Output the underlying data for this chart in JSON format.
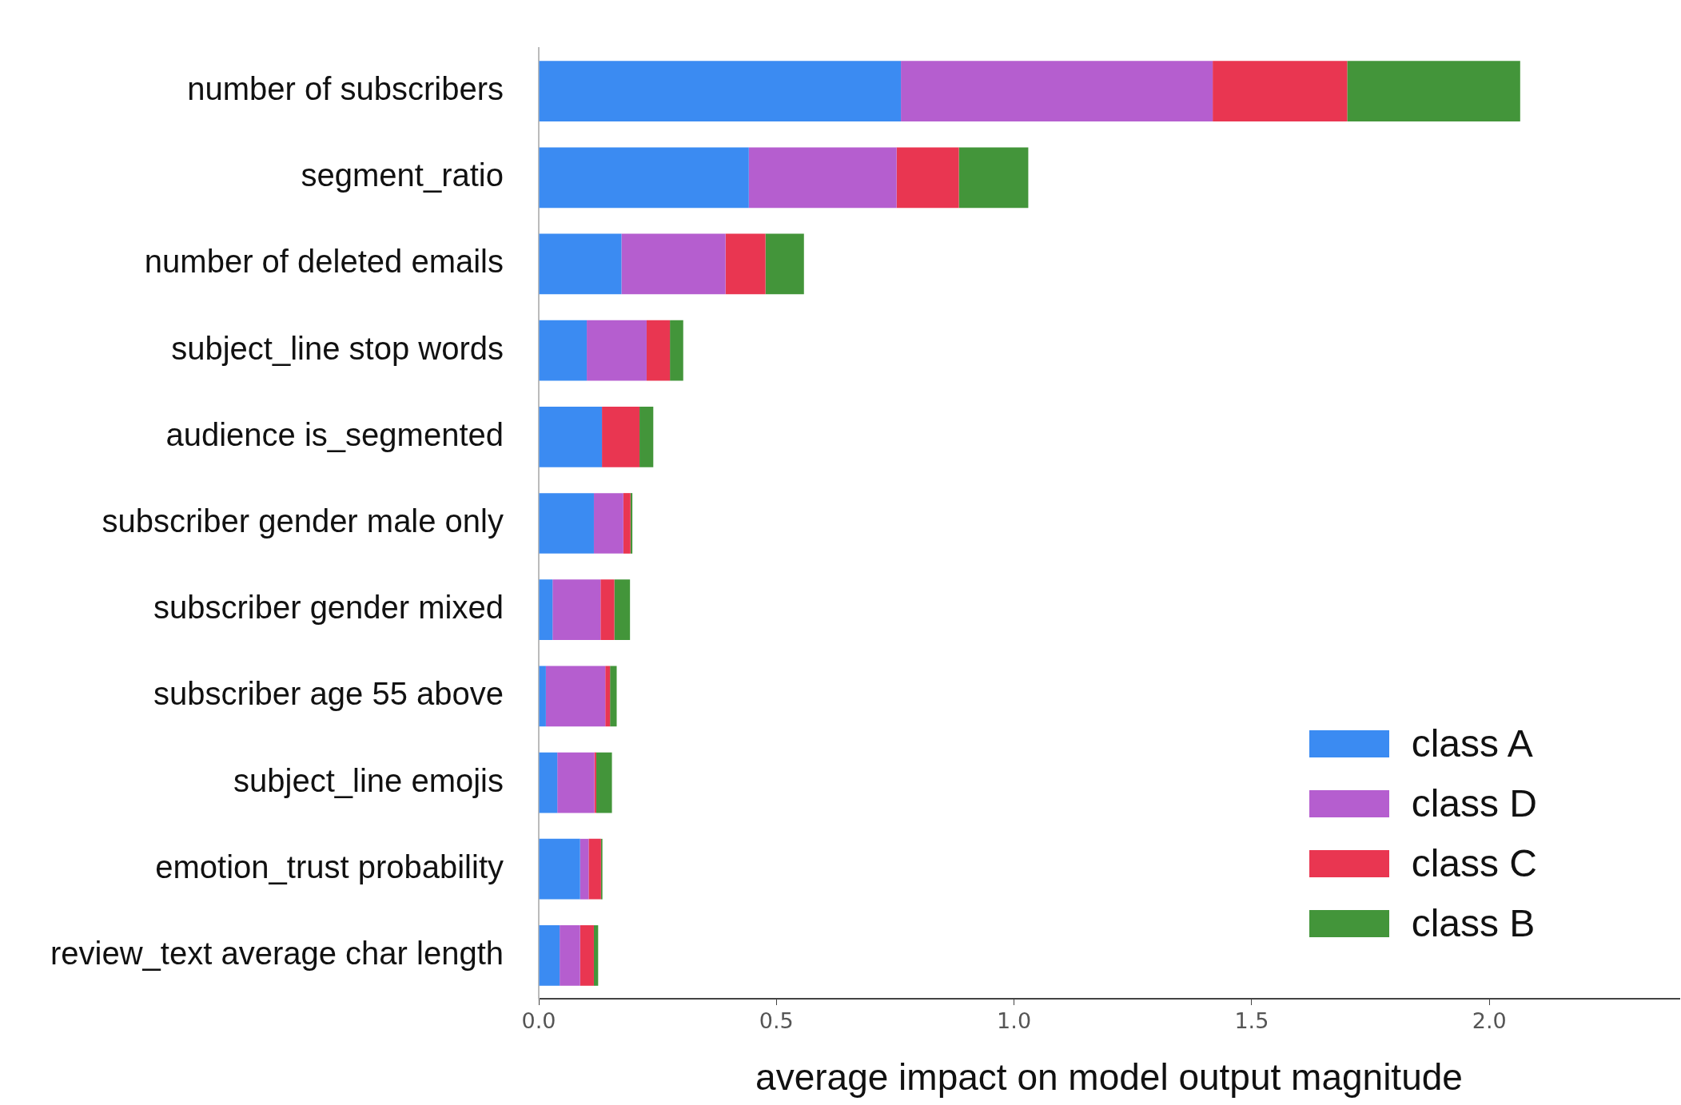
{
  "chart_data": {
    "type": "bar",
    "orientation": "horizontal",
    "stacked": true,
    "xlabel": "average impact on model output magnitude",
    "categories": [
      "number of subscribers",
      "segment_ratio",
      "number of deleted emails",
      "subject_line stop words",
      "audience is_segmented",
      "subscriber gender male only",
      "subscriber gender mixed",
      "subscriber age 55 above",
      "subject_line emojis",
      "emotion_trust probability",
      "review_text average char length"
    ],
    "series": [
      {
        "name": "class A",
        "color": "#3b8bf2",
        "values": [
          0.762,
          0.442,
          0.174,
          0.101,
          0.133,
          0.116,
          0.029,
          0.015,
          0.039,
          0.087,
          0.044
        ]
      },
      {
        "name": "class D",
        "color": "#b55ecf",
        "values": [
          0.656,
          0.311,
          0.219,
          0.126,
          0,
          0.062,
          0.101,
          0.125,
          0.078,
          0.018,
          0.043
        ]
      },
      {
        "name": "class C",
        "color": "#e93651",
        "values": [
          0.283,
          0.131,
          0.084,
          0.049,
          0.079,
          0.015,
          0.029,
          0.01,
          0.004,
          0.026,
          0.029
        ]
      },
      {
        "name": "class B",
        "color": "#43953a",
        "values": [
          0.364,
          0.146,
          0.081,
          0.028,
          0.029,
          0.004,
          0.033,
          0.014,
          0.033,
          0.003,
          0.009
        ]
      }
    ],
    "xlim": [
      0,
      2.4
    ],
    "xticks": [
      {
        "value": 0,
        "label": "0.0"
      },
      {
        "value": 0.5,
        "label": "0.5"
      },
      {
        "value": 1,
        "label": "1.0"
      },
      {
        "value": 1.5,
        "label": "1.5"
      },
      {
        "value": 2,
        "label": "2.0"
      }
    ],
    "legend": "bottom right",
    "grid": false
  }
}
